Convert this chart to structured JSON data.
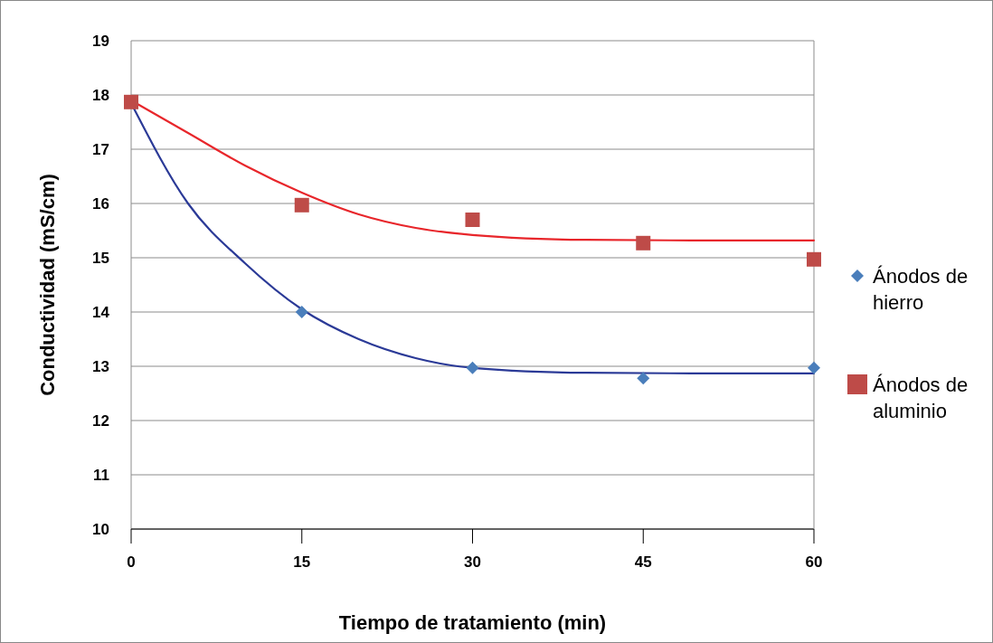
{
  "chart_data": {
    "type": "scatter",
    "xlabel": "Tiempo de tratamiento (min)",
    "ylabel": "Conductividad (mS/cm)",
    "xlim": [
      0,
      60
    ],
    "xticks": [
      0,
      15,
      30,
      45,
      60
    ],
    "ylim": [
      10,
      19
    ],
    "yticks": [
      10,
      11,
      12,
      13,
      14,
      15,
      16,
      17,
      18,
      19
    ],
    "grid": "y",
    "legend": "right",
    "series": [
      {
        "type": "line",
        "color": "#2b3a97",
        "marker": "none",
        "x": [
          0,
          5,
          10,
          15,
          20,
          25,
          30,
          40,
          50,
          60
        ],
        "values": [
          17.85,
          16.0,
          14.9,
          14.05,
          13.5,
          13.15,
          12.97,
          12.88,
          12.87,
          12.87
        ]
      },
      {
        "type": "line",
        "color": "#e8262b",
        "marker": "none",
        "x": [
          0,
          5,
          10,
          15,
          20,
          25,
          30,
          40,
          50,
          60
        ],
        "values": [
          17.9,
          17.3,
          16.7,
          16.2,
          15.8,
          15.55,
          15.42,
          15.33,
          15.32,
          15.32
        ]
      },
      {
        "name": "Ánodos de hierro",
        "color": "#4a7ebb",
        "marker": "diamond",
        "x": [
          15,
          30,
          45,
          60
        ],
        "values": [
          14.0,
          12.97,
          12.78,
          12.97
        ]
      },
      {
        "name": "Ánodos de aluminio",
        "color": "#be4b48",
        "marker": "square",
        "x": [
          0,
          15,
          30,
          45,
          60
        ],
        "values": [
          17.87,
          15.97,
          15.7,
          15.27,
          14.97
        ]
      }
    ]
  }
}
